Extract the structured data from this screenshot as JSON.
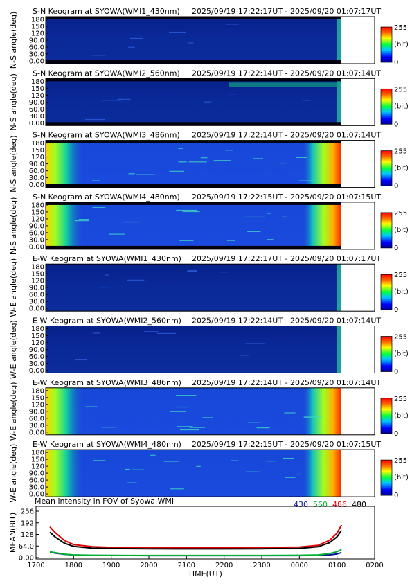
{
  "keograms": [
    {
      "title": "S-N Keogram at SYOWA(WMI1_430nm)",
      "time_range": "2025/09/19 17:22:17UT - 2025/09/20 01:07:17UT",
      "ylabel": "N-S angle(deg)",
      "variant": "dark"
    },
    {
      "title": "S-N Keogram at SYOWA(WMI2_560nm)",
      "time_range": "2025/09/19 17:22:14UT - 2025/09/20 01:07:14UT",
      "ylabel": "N-S angle(deg)",
      "variant": "dark"
    },
    {
      "title": "S-N Keogram at SYOWA(WMI3_486nm)",
      "time_range": "2025/09/19 17:22:14UT - 2025/09/20 01:07:14UT",
      "ylabel": "N-S angle(deg)",
      "variant": "bright"
    },
    {
      "title": "S-N Keogram at SYOWA(WMI4_480nm)",
      "time_range": "2025/09/19 17:22:15UT - 2025/09/20 01:07:15UT",
      "ylabel": "N-S angle(deg)",
      "variant": "bright"
    },
    {
      "title": "E-W Keogram at SYOWA(WMI1_430nm)",
      "time_range": "2025/09/19 17:22:17UT - 2025/09/20 01:07:17UT",
      "ylabel": "W-E angle(deg)",
      "variant": "dark"
    },
    {
      "title": "E-W Keogram at SYOWA(WMI2_560nm)",
      "time_range": "2025/09/19 17:22:14UT - 2025/09/20 01:07:14UT",
      "ylabel": "W-E angle(deg)",
      "variant": "dark"
    },
    {
      "title": "E-W Keogram at SYOWA(WMI3_486nm)",
      "time_range": "2025/09/19 17:22:14UT - 2025/09/20 01:07:14UT",
      "ylabel": "W-E angle(deg)",
      "variant": "bright"
    },
    {
      "title": "E-W Keogram at SYOWA(WMI4_480nm)",
      "time_range": "2025/09/19 17:22:15UT - 2025/09/20 01:07:15UT",
      "ylabel": "W-E angle(deg)",
      "variant": "bright"
    }
  ],
  "angle_ticks": [
    "180",
    "150",
    "120",
    "90.0",
    "60.0",
    "30.0",
    "0.00"
  ],
  "colorbar": {
    "max": "255",
    "unit": "(bit)",
    "min": "0"
  },
  "chart_data": {
    "type": "line",
    "title": "Mean intensity in FOV of Syowa WMI",
    "xlabel": "TIME(UT)",
    "ylabel": "MEAN(BIT)",
    "x_ticks": [
      "1700",
      "1800",
      "1900",
      "2000",
      "2100",
      "2200",
      "2300",
      "0000",
      "0100",
      "0200"
    ],
    "y_ticks": [
      "256",
      "192",
      "128",
      "64.0",
      "0.00"
    ],
    "ylim": [
      0,
      256
    ],
    "x": [
      17.37,
      17.5,
      17.75,
      18.0,
      18.5,
      19.0,
      20.0,
      21.0,
      22.0,
      23.0,
      24.0,
      24.5,
      24.8,
      25.0,
      25.12
    ],
    "series": [
      {
        "name": "430",
        "color": "#1010a0",
        "values": [
          30,
          25,
          18,
          14,
          12,
          12,
          11,
          11,
          11,
          11,
          11,
          12,
          15,
          20,
          28
        ]
      },
      {
        "name": "560",
        "color": "#00b030",
        "values": [
          32,
          27,
          19,
          15,
          13,
          12,
          12,
          12,
          12,
          12,
          13,
          15,
          22,
          32,
          45
        ]
      },
      {
        "name": "486",
        "color": "#e00000",
        "values": [
          170,
          140,
          95,
          72,
          60,
          57,
          56,
          55,
          55,
          56,
          58,
          68,
          95,
          135,
          180
        ]
      },
      {
        "name": "480",
        "color": "#000000",
        "values": [
          140,
          115,
          80,
          62,
          52,
          50,
          49,
          48,
          48,
          49,
          51,
          60,
          82,
          115,
          150
        ]
      }
    ],
    "legend_position": "top-right"
  }
}
